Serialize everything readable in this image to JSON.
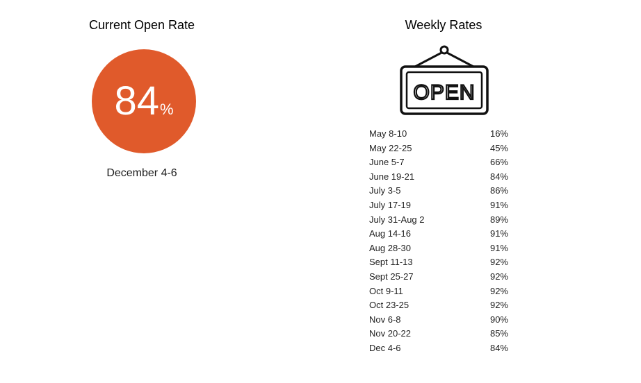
{
  "current": {
    "title": "Current Open Rate",
    "value": "84",
    "unit": "%",
    "date": "December 4-6",
    "circle_color": "#e05a2b"
  },
  "weekly": {
    "title": "Weekly Rates",
    "sign_icon": "open-sign-icon",
    "sign_text": "OPEN",
    "rows": [
      {
        "range": "May 8-10",
        "rate": "16%"
      },
      {
        "range": "May 22-25",
        "rate": "45%"
      },
      {
        "range": "June 5-7",
        "rate": "66%"
      },
      {
        "range": "June 19-21",
        "rate": "84%"
      },
      {
        "range": "July 3-5",
        "rate": "86%"
      },
      {
        "range": "July 17-19",
        "rate": "91%"
      },
      {
        "range": "July 31-Aug 2",
        "rate": "89%"
      },
      {
        "range": "Aug 14-16",
        "rate": "91%"
      },
      {
        "range": "Aug 28-30",
        "rate": "91%"
      },
      {
        "range": "Sept 11-13",
        "rate": "92%"
      },
      {
        "range": "Sept 25-27",
        "rate": "92%"
      },
      {
        "range": "Oct 9-11",
        "rate": "92%"
      },
      {
        "range": "Oct 23-25",
        "rate": "92%"
      },
      {
        "range": "Nov 6-8",
        "rate": "90%"
      },
      {
        "range": "Nov 20-22",
        "rate": "85%"
      },
      {
        "range": "Dec 4-6",
        "rate": "84%"
      }
    ]
  }
}
